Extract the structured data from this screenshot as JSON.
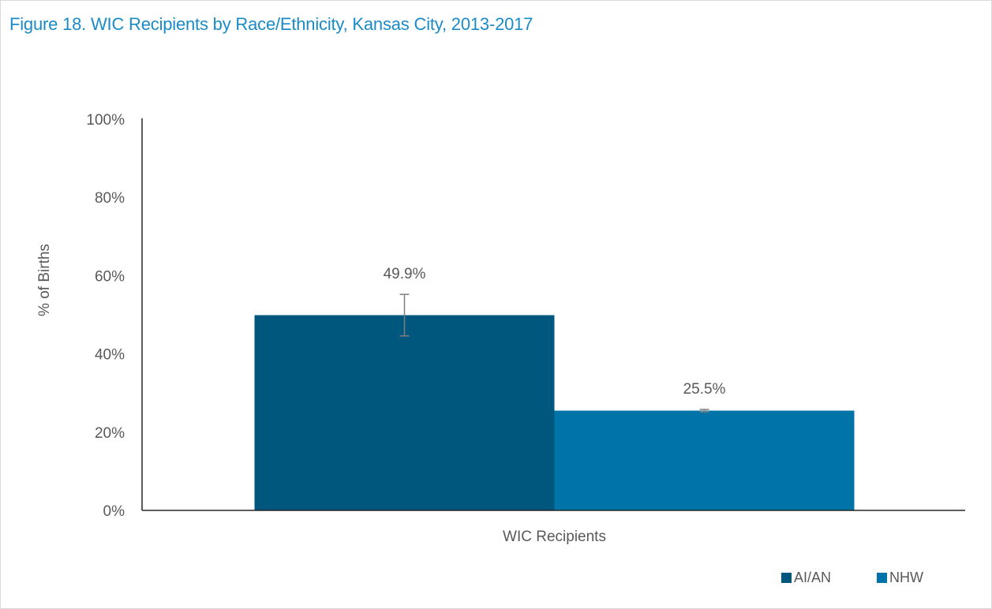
{
  "chart_data": {
    "type": "bar",
    "title": "Figure 18. WIC Recipients by Race/Ethnicity, Kansas City, 2013-2017",
    "xlabel": "",
    "ylabel": "% of Births",
    "categories": [
      "WIC Recipients"
    ],
    "ylim": [
      0,
      100
    ],
    "yticks": [
      "0%",
      "20%",
      "40%",
      "60%",
      "80%",
      "100%"
    ],
    "ytick_values": [
      0,
      20,
      40,
      60,
      80,
      100
    ],
    "grid": false,
    "legend_position": "bottom-right",
    "series": [
      {
        "name": "AI/AN",
        "values": [
          49.9
        ],
        "label": "49.9%",
        "error_low": [
          44.6
        ],
        "error_high": [
          55.2
        ],
        "color": "#00577d"
      },
      {
        "name": "NHW",
        "values": [
          25.5
        ],
        "label": "25.5%",
        "error_low": [
          25.2
        ],
        "error_high": [
          25.8
        ],
        "color": "#0073a8"
      }
    ]
  },
  "colors": {
    "title": "#1a8bc6",
    "axis_text": "#595959",
    "axis_line": "#262626",
    "error_bar": "#7f7f7f"
  }
}
